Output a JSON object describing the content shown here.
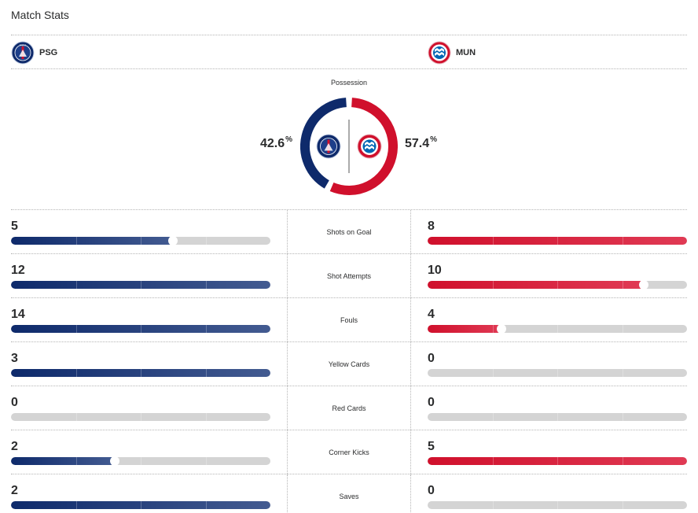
{
  "header": {
    "title": "Match Stats"
  },
  "teams": {
    "home": {
      "abbr": "PSG",
      "logo_icon": "psg-crest-icon",
      "color": "#0e2a6b"
    },
    "away": {
      "abbr": "MUN",
      "logo_icon": "bayern-crest-icon",
      "color": "#d0102c"
    }
  },
  "possession": {
    "label": "Possession",
    "home_value": "42.6",
    "away_value": "57.4",
    "unit": "%",
    "home_fraction": 0.426,
    "away_fraction": 0.574
  },
  "stats": [
    {
      "label": "Shots on Goal",
      "home": "5",
      "away": "8",
      "home_fraction": 0.625,
      "away_fraction": 1.0
    },
    {
      "label": "Shot Attempts",
      "home": "12",
      "away": "10",
      "home_fraction": 1.0,
      "away_fraction": 0.833
    },
    {
      "label": "Fouls",
      "home": "14",
      "away": "4",
      "home_fraction": 1.0,
      "away_fraction": 0.286
    },
    {
      "label": "Yellow Cards",
      "home": "3",
      "away": "0",
      "home_fraction": 1.0,
      "away_fraction": 0
    },
    {
      "label": "Red Cards",
      "home": "0",
      "away": "0",
      "home_fraction": 0,
      "away_fraction": 0
    },
    {
      "label": "Corner Kicks",
      "home": "2",
      "away": "5",
      "home_fraction": 0.4,
      "away_fraction": 1.0
    },
    {
      "label": "Saves",
      "home": "2",
      "away": "0",
      "home_fraction": 1.0,
      "away_fraction": 0
    }
  ]
}
